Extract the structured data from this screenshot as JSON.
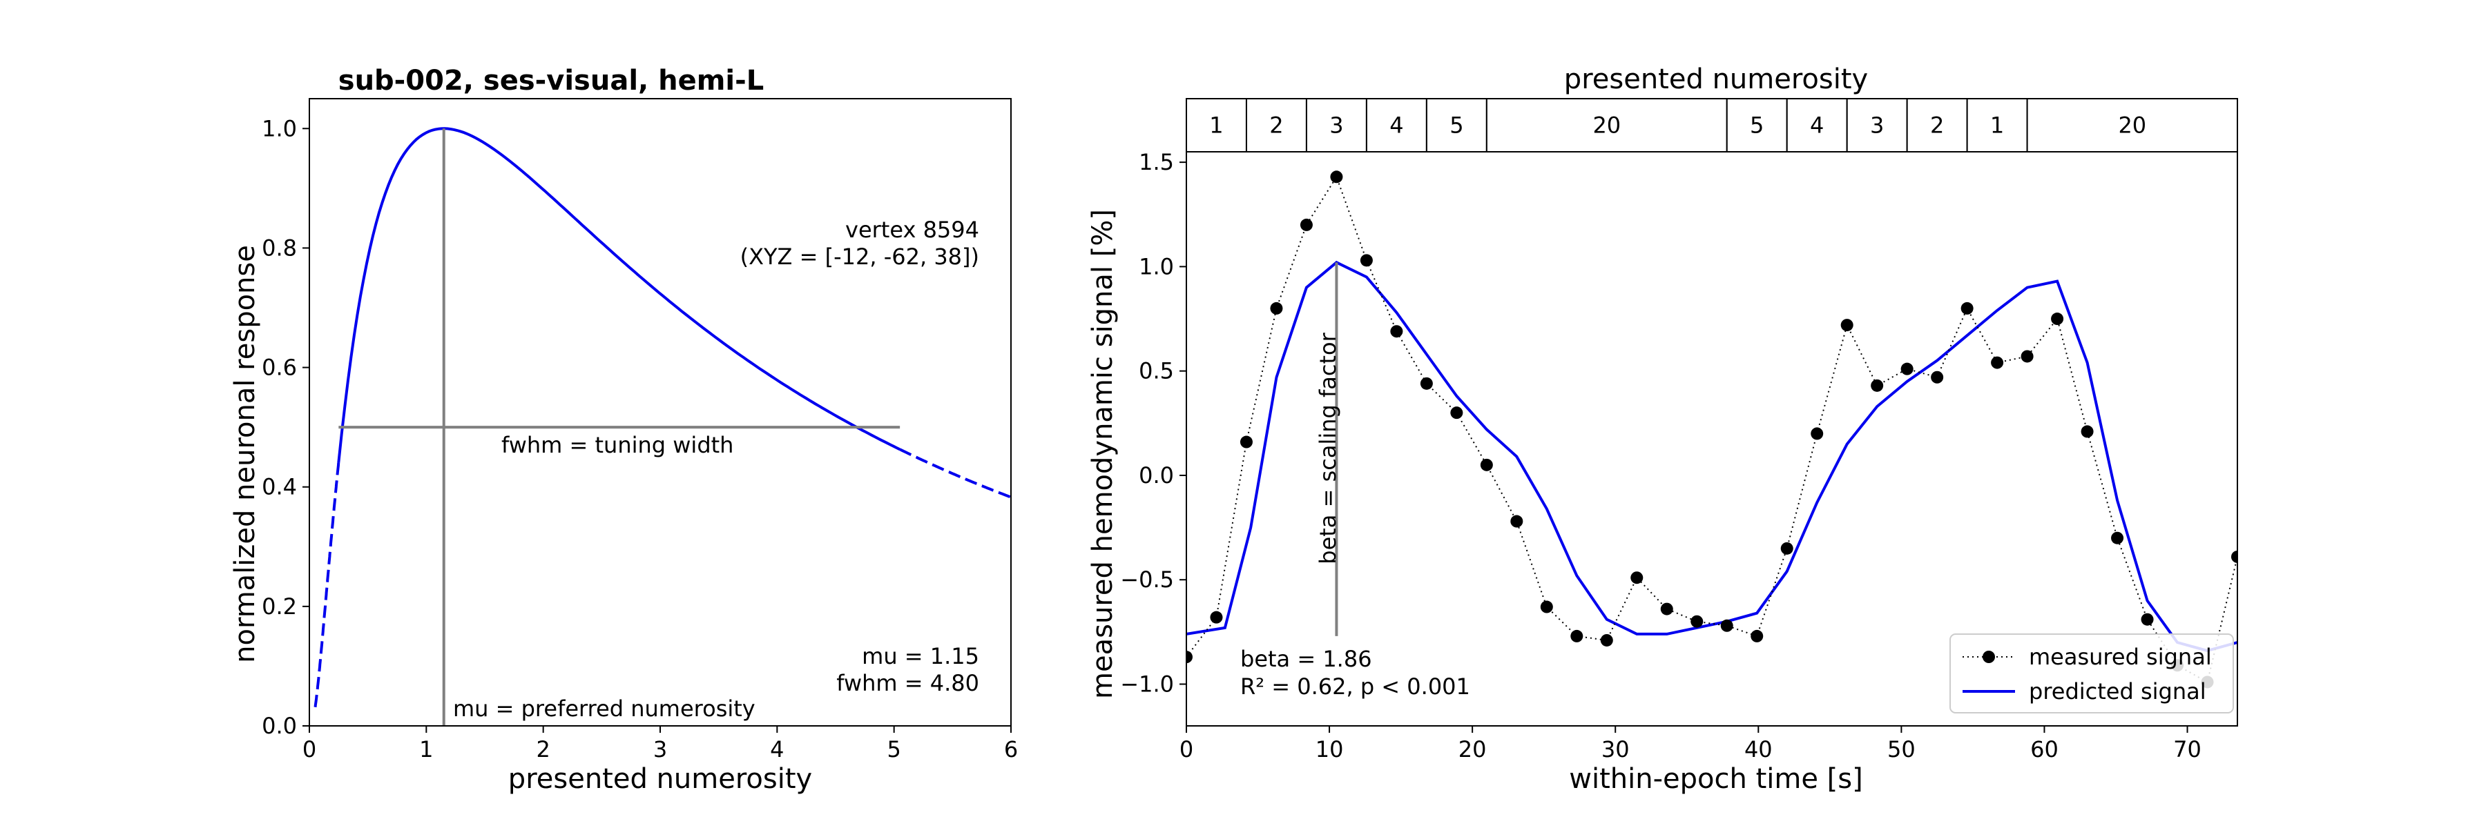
{
  "chart_data": [
    {
      "type": "line",
      "title": "sub-002, ses-visual, hemi-L",
      "xlabel": "presented numerosity",
      "ylabel": "normalized neuronal response",
      "xlim": [
        0,
        6
      ],
      "ylim": [
        0,
        1.05
      ],
      "x_ticks": [
        "0",
        "1",
        "2",
        "3",
        "4",
        "5",
        "6"
      ],
      "y_ticks": [
        "0.0",
        "0.2",
        "0.4",
        "0.6",
        "0.8",
        "1.0"
      ],
      "grid": false,
      "model": {
        "function": "log-gaussian tuning curve",
        "mu": 1.15,
        "fwhm": 4.8,
        "solid_range": [
          0.25,
          5.05
        ],
        "dashed_ranges": [
          [
            0.05,
            0.25
          ],
          [
            5.05,
            6.0
          ]
        ]
      },
      "annotations": {
        "vertex": "vertex 8594",
        "xyz": "(XYZ = [-12, -62, 38])",
        "fwhm_line": "fwhm = tuning width",
        "mu_line": "mu = preferred numerosity",
        "mu_value": "mu = 1.15",
        "fwhm_value": "fwhm = 4.80"
      },
      "markers": {
        "mu_vline": {
          "x": 1.15,
          "y_range": [
            0,
            1.0
          ]
        },
        "fwhm_hline": {
          "y": 0.5,
          "x_range": [
            0.25,
            5.05
          ]
        }
      }
    },
    {
      "type": "line",
      "title": "presented numerosity",
      "xlabel": "within-epoch time [s]",
      "ylabel": "measured hemodynamic signal [%]",
      "xlim": [
        0,
        73.5
      ],
      "ylim": [
        -1.2,
        1.55
      ],
      "x_ticks": [
        "0",
        "10",
        "20",
        "30",
        "40",
        "50",
        "60",
        "70"
      ],
      "y_ticks": [
        "−1.0",
        "−0.5",
        "0.0",
        "0.5",
        "1.0",
        "1.5"
      ],
      "grid": false,
      "legend_position": "bottom-right",
      "epochs": [
        {
          "label": "1",
          "start": 0,
          "end": 4.2
        },
        {
          "label": "2",
          "start": 4.2,
          "end": 8.4
        },
        {
          "label": "3",
          "start": 8.4,
          "end": 12.6
        },
        {
          "label": "4",
          "start": 12.6,
          "end": 16.8
        },
        {
          "label": "5",
          "start": 16.8,
          "end": 21.0
        },
        {
          "label": "20",
          "start": 21.0,
          "end": 37.8
        },
        {
          "label": "5",
          "start": 37.8,
          "end": 42.0
        },
        {
          "label": "4",
          "start": 42.0,
          "end": 46.2
        },
        {
          "label": "3",
          "start": 46.2,
          "end": 50.4
        },
        {
          "label": "2",
          "start": 50.4,
          "end": 54.6
        },
        {
          "label": "1",
          "start": 54.6,
          "end": 58.8
        },
        {
          "label": "20",
          "start": 58.8,
          "end": 73.5
        }
      ],
      "series": [
        {
          "name": "measured signal",
          "style": "dotted-markers",
          "color": "#000000",
          "x": [
            0,
            2.1,
            4.2,
            6.3,
            8.4,
            10.5,
            12.6,
            14.7,
            16.8,
            18.9,
            21.0,
            23.1,
            25.2,
            27.3,
            29.4,
            31.5,
            33.6,
            35.7,
            37.8,
            39.9,
            42.0,
            44.1,
            46.2,
            48.3,
            50.4,
            52.5,
            54.6,
            56.7,
            58.8,
            60.9,
            63.0,
            65.1,
            67.2,
            69.3,
            71.4,
            73.5
          ],
          "values": [
            -0.87,
            -0.68,
            0.16,
            0.8,
            1.2,
            1.43,
            1.03,
            0.69,
            0.44,
            0.3,
            0.05,
            -0.22,
            -0.63,
            -0.77,
            -0.79,
            -0.49,
            -0.64,
            -0.7,
            -0.72,
            -0.77,
            -0.35,
            0.2,
            0.72,
            0.43,
            0.51,
            0.47,
            0.8,
            0.54,
            0.57,
            0.75,
            0.21,
            -0.3,
            -0.69,
            -0.91,
            -0.99,
            -0.39
          ]
        },
        {
          "name": "predicted signal",
          "style": "solid",
          "color": "#0000ee",
          "x": [
            0,
            2.7,
            4.5,
            6.3,
            8.4,
            10.5,
            12.6,
            14.7,
            16.8,
            18.9,
            21.0,
            23.1,
            25.2,
            27.3,
            29.4,
            31.5,
            33.6,
            35.7,
            37.8,
            39.9,
            42.0,
            44.1,
            46.2,
            48.3,
            50.4,
            52.5,
            54.6,
            56.7,
            58.8,
            60.9,
            63.0,
            65.1,
            67.2,
            69.3,
            71.4,
            73.5
          ],
          "values": [
            -0.76,
            -0.73,
            -0.25,
            0.47,
            0.9,
            1.02,
            0.95,
            0.78,
            0.58,
            0.38,
            0.22,
            0.09,
            -0.16,
            -0.48,
            -0.69,
            -0.76,
            -0.76,
            -0.73,
            -0.7,
            -0.66,
            -0.46,
            -0.13,
            0.15,
            0.33,
            0.45,
            0.55,
            0.67,
            0.79,
            0.9,
            0.93,
            0.54,
            -0.12,
            -0.6,
            -0.8,
            -0.84,
            -0.8
          ]
        }
      ],
      "annotations": {
        "beta_line": "beta = scaling factor",
        "beta_value": "beta = 1.86",
        "fit_stats": "R² = 0.62, p < 0.001"
      },
      "markers": {
        "beta_vline": {
          "x": 10.5,
          "y_range": [
            -0.77,
            1.02
          ]
        }
      }
    }
  ]
}
